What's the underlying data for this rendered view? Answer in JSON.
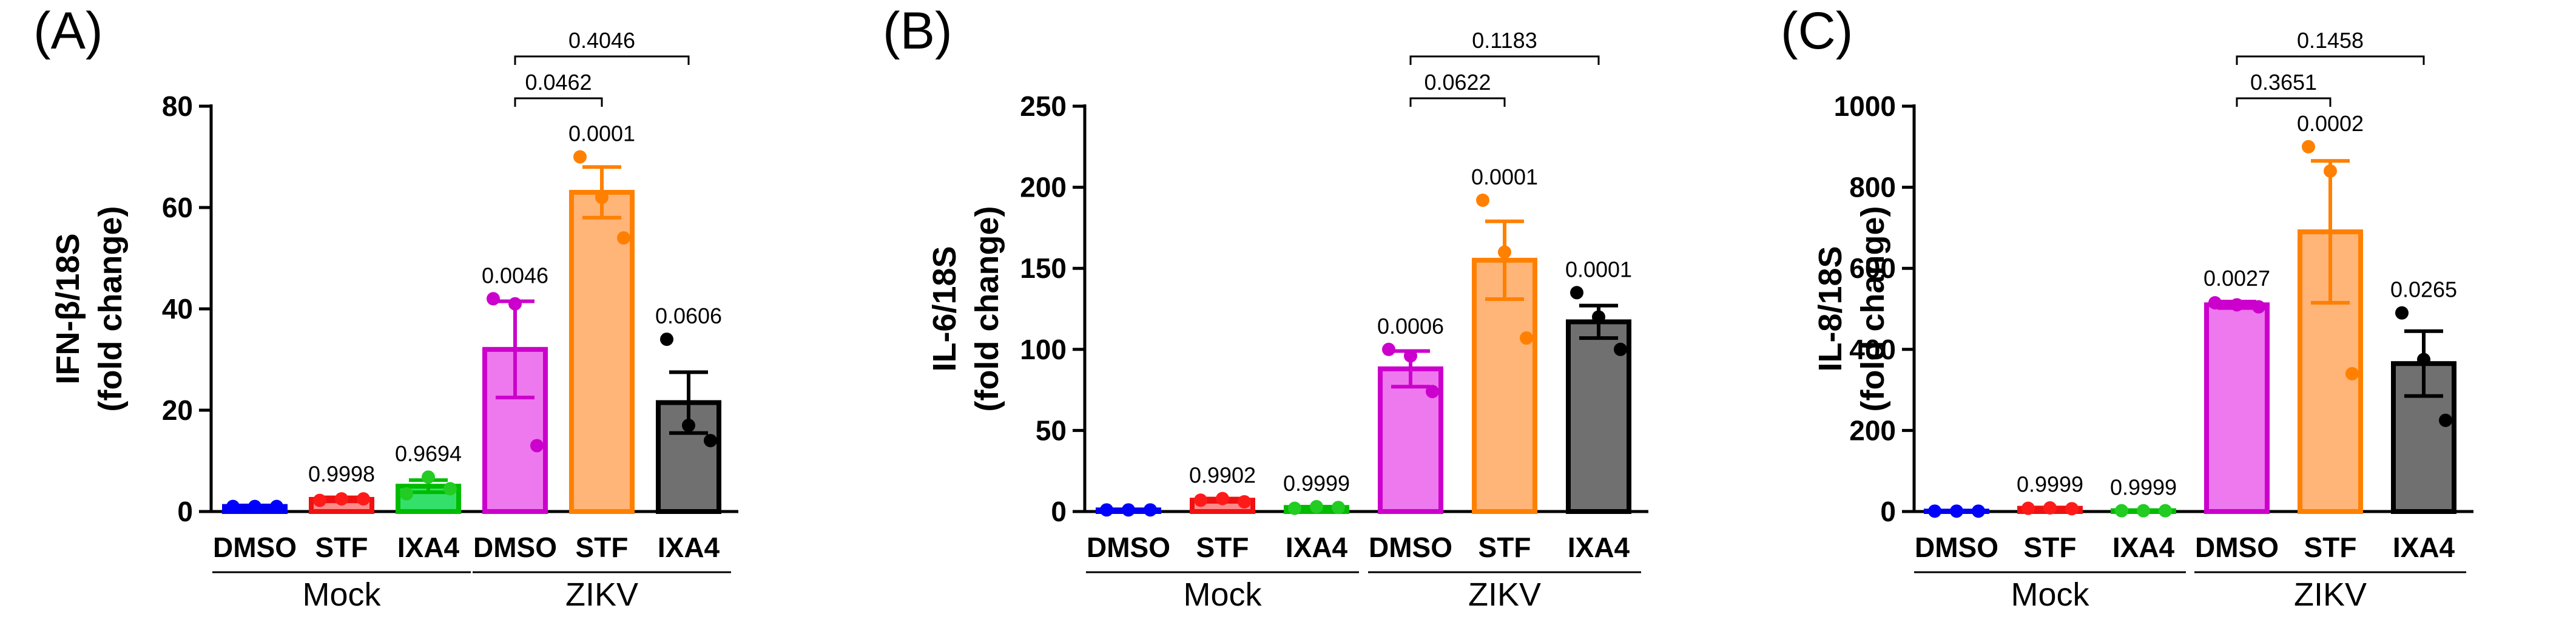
{
  "chart_data": [
    {
      "type": "bar",
      "panel_label": "(A)",
      "ylabel_lines": [
        "IFN-β/18S",
        "(fold change)"
      ],
      "ylim": [
        0,
        80
      ],
      "yticks": [
        0,
        20,
        40,
        60,
        80
      ],
      "categories": [
        "DMSO",
        "STF",
        "IXA4",
        "DMSO",
        "STF",
        "IXA4"
      ],
      "groups": [
        {
          "name": "Mock",
          "members": [
            0,
            1,
            2
          ]
        },
        {
          "name": "ZIKV",
          "members": [
            3,
            4,
            5
          ]
        }
      ],
      "values": [
        1.0,
        2.4,
        5.0,
        32.0,
        63.0,
        21.5
      ],
      "errors": [
        0.2,
        0.4,
        1.2,
        9.5,
        5.0,
        6.0
      ],
      "points": [
        [
          1,
          1,
          1
        ],
        [
          2.2,
          2.5,
          2.5
        ],
        [
          3.5,
          6.8,
          4.5
        ],
        [
          42,
          41,
          13
        ],
        [
          70,
          62,
          54
        ],
        [
          34,
          17,
          14
        ]
      ],
      "colors": {
        "fill": [
          "#8a8aff",
          "#ff8a8a",
          "#35e06a",
          "#ee78ee",
          "#ffb478",
          "#707070"
        ],
        "edge": [
          "#0000ee",
          "#ee1111",
          "#00bb00",
          "#cc00cc",
          "#ff8000",
          "#000000"
        ],
        "dot": [
          "#0000ff",
          "#ff1a1a",
          "#22cc22",
          "#cc00cc",
          "#ff8000",
          "#000000"
        ]
      },
      "pvalues": [
        "",
        "0.9998",
        "0.9694",
        "0.0046",
        "0.0001",
        "0.0606"
      ],
      "brackets": [
        {
          "from": 3,
          "to": 4,
          "label": "0.0462"
        },
        {
          "from": 3,
          "to": 5,
          "label": "0.4046"
        }
      ]
    },
    {
      "type": "bar",
      "panel_label": "(B)",
      "ylabel_lines": [
        "IL-6/18S",
        "(fold change)"
      ],
      "ylim": [
        0,
        250
      ],
      "yticks": [
        0,
        50,
        100,
        150,
        200,
        250
      ],
      "categories": [
        "DMSO",
        "STF",
        "IXA4",
        "DMSO",
        "STF",
        "IXA4"
      ],
      "groups": [
        {
          "name": "Mock",
          "members": [
            0,
            1,
            2
          ]
        },
        {
          "name": "ZIKV",
          "members": [
            3,
            4,
            5
          ]
        }
      ],
      "values": [
        1.0,
        7.0,
        2.5,
        88,
        155,
        117
      ],
      "errors": [
        0.3,
        1.0,
        0.5,
        11,
        24,
        10
      ],
      "points": [
        [
          1,
          1,
          1
        ],
        [
          7,
          8,
          6
        ],
        [
          2,
          3,
          2.5
        ],
        [
          100,
          96,
          74
        ],
        [
          192,
          160,
          107
        ],
        [
          135,
          120,
          100
        ]
      ],
      "colors": {
        "fill": [
          "#8a8aff",
          "#ff8a8a",
          "#35e06a",
          "#ee78ee",
          "#ffb478",
          "#707070"
        ],
        "edge": [
          "#0000ee",
          "#ee1111",
          "#00bb00",
          "#cc00cc",
          "#ff8000",
          "#000000"
        ],
        "dot": [
          "#0000ff",
          "#ff1a1a",
          "#22cc22",
          "#cc00cc",
          "#ff8000",
          "#000000"
        ]
      },
      "pvalues": [
        "",
        "0.9902",
        "0.9999",
        "0.0006",
        "0.0001",
        "0.0001"
      ],
      "brackets": [
        {
          "from": 3,
          "to": 4,
          "label": "0.0622"
        },
        {
          "from": 3,
          "to": 5,
          "label": "0.1183"
        }
      ]
    },
    {
      "type": "bar",
      "panel_label": "(C)",
      "ylabel_lines": [
        "IL-8/18S",
        "(fold change)"
      ],
      "ylim": [
        0,
        1000
      ],
      "yticks": [
        0,
        200,
        400,
        600,
        800,
        1000
      ],
      "categories": [
        "DMSO",
        "STF",
        "IXA4",
        "DMSO",
        "STF",
        "IXA4"
      ],
      "groups": [
        {
          "name": "Mock",
          "members": [
            0,
            1,
            2
          ]
        },
        {
          "name": "ZIKV",
          "members": [
            3,
            4,
            5
          ]
        }
      ],
      "values": [
        1.0,
        8.0,
        2.0,
        510,
        690,
        365
      ],
      "errors": [
        0.5,
        2.0,
        0.5,
        8,
        175,
        80
      ],
      "points": [
        [
          1,
          1,
          1
        ],
        [
          8,
          9,
          7
        ],
        [
          2,
          2,
          2
        ],
        [
          515,
          510,
          505
        ],
        [
          900,
          840,
          340
        ],
        [
          490,
          375,
          225
        ]
      ],
      "colors": {
        "fill": [
          "#8a8aff",
          "#ff8a8a",
          "#35e06a",
          "#ee78ee",
          "#ffb478",
          "#707070"
        ],
        "edge": [
          "#0000ee",
          "#ee1111",
          "#00bb00",
          "#cc00cc",
          "#ff8000",
          "#000000"
        ],
        "dot": [
          "#0000ff",
          "#ff1a1a",
          "#22cc22",
          "#cc00cc",
          "#ff8000",
          "#000000"
        ]
      },
      "pvalues": [
        "",
        "0.9999",
        "0.9999",
        "0.0027",
        "0.0002",
        "0.0265"
      ],
      "brackets": [
        {
          "from": 3,
          "to": 4,
          "label": "0.3651"
        },
        {
          "from": 3,
          "to": 5,
          "label": "0.1458"
        }
      ]
    }
  ]
}
